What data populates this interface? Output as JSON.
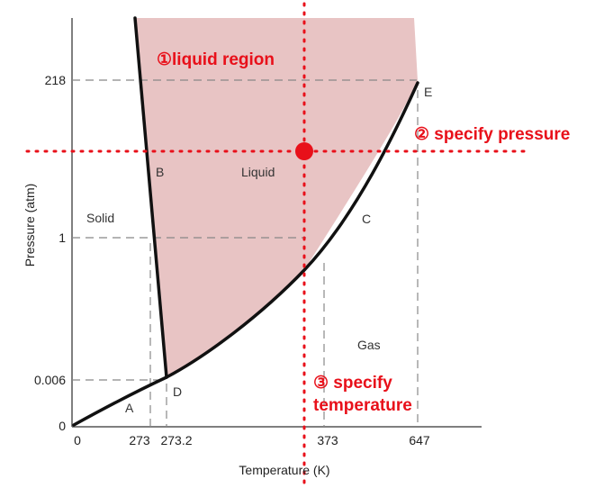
{
  "diagram": {
    "axes": {
      "y_label": "Pressure (atm)",
      "x_label": "Temperature (K)",
      "y_ticks": [
        "218",
        "1",
        "0.006",
        "0"
      ],
      "x_ticks": [
        "0",
        "273",
        "273.2",
        "373",
        "647"
      ]
    },
    "regions": {
      "solid": "Solid",
      "liquid": "Liquid",
      "gas": "Gas"
    },
    "points": {
      "A": "A",
      "B": "B",
      "C": "C",
      "D": "D",
      "E": "E"
    },
    "annotations": {
      "liquid_region": "①liquid region",
      "specify_pressure": "② specify pressure",
      "specify_temperature_1": "③ specify",
      "specify_temperature_2": "temperature"
    },
    "colors": {
      "liquid_fill": "#e8c4c4",
      "annotation": "#e8101a",
      "curve": "#111111",
      "guide": "#888888"
    }
  }
}
